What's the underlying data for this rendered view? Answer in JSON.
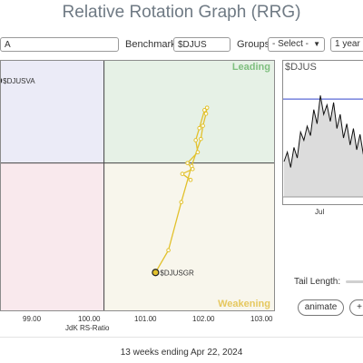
{
  "title": "Relative Rotation Graph (RRG)",
  "controls": {
    "symbol_value": "A",
    "benchmark_label": "Benchmark:",
    "benchmark_value": "$DJUS",
    "groups_label": "Groups:",
    "groups_value": "- Select -",
    "period_value": "1 year"
  },
  "quadrants": {
    "leading": "Leading",
    "weakening": "Weakening",
    "colors": {
      "leading": "#e6f1e6",
      "weakening": "#f8f6ec",
      "lagging": "#f9e9ed",
      "improving": "#ebebf7"
    }
  },
  "chart_data": {
    "type": "scatter",
    "xlabel": "JdK RS-Ratio",
    "x_ticks": [
      "99.00",
      "100.00",
      "101.00",
      "102.00",
      "103.00"
    ],
    "xlim": [
      98.0,
      103.3
    ],
    "ylim": [
      97.55,
      101.7
    ],
    "series": [
      {
        "name": "$DJUSGR",
        "color": "#e2c12c",
        "points": [
          [
            101.68,
            99.72
          ],
          [
            101.52,
            99.82
          ],
          [
            101.72,
            99.9
          ],
          [
            101.62,
            100.0
          ],
          [
            101.82,
            100.18
          ],
          [
            101.78,
            100.38
          ],
          [
            101.85,
            100.58
          ],
          [
            101.95,
            100.88
          ],
          [
            102.0,
            100.92
          ],
          [
            101.98,
            100.82
          ],
          [
            101.92,
            100.62
          ],
          [
            101.88,
            100.4
          ],
          [
            101.7,
            99.95
          ],
          [
            101.5,
            99.35
          ],
          [
            101.25,
            98.55
          ],
          [
            101.0,
            98.18
          ]
        ]
      },
      {
        "name": "$DJUSVA",
        "color": "#2233bb",
        "points": [
          [
            97.95,
            101.37
          ]
        ]
      }
    ]
  },
  "mini_chart": {
    "symbol": "$DJUS",
    "x_ticks": [
      "Jul"
    ],
    "line_values": [
      0.3,
      0.38,
      0.25,
      0.42,
      0.33,
      0.55,
      0.48,
      0.6,
      0.52,
      0.74,
      0.62,
      0.86,
      0.7,
      0.78,
      0.64,
      0.8,
      0.58,
      0.7,
      0.5,
      0.62,
      0.44,
      0.58,
      0.4,
      0.53,
      0.36,
      0.7
    ],
    "hline_level": 0.83,
    "colors": {
      "line": "#111111",
      "fill": "#dcdcdc",
      "hline": "#3344cc"
    }
  },
  "tail_length_label": "Tail Length:",
  "animate_label": "animate",
  "plus_label": "+",
  "caption": "13 weeks ending Apr 22, 2024"
}
